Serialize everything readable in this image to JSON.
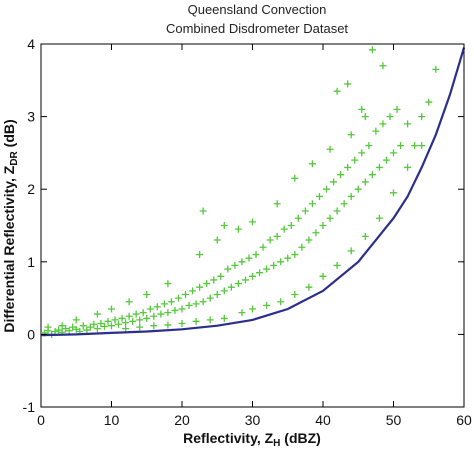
{
  "chart_data": {
    "type": "scatter",
    "title": "Queensland Convection",
    "subtitle": "Combined Disdrometer Dataset",
    "xlabel": "Reflectivity, Z",
    "xlabel_sub": "H",
    "xlabel_unit": " (dBZ)",
    "ylabel": "Differential Reflectivity, Z",
    "ylabel_sub": "DR",
    "ylabel_unit": " (dB)",
    "xlim": [
      0,
      60
    ],
    "ylim": [
      -1,
      4
    ],
    "xticks": [
      0,
      10,
      20,
      30,
      40,
      50,
      60
    ],
    "xtick_labels": [
      "0",
      "10",
      "20",
      "30",
      "40",
      "50",
      "60"
    ],
    "yticks": [
      -1,
      0,
      1,
      2,
      3,
      4
    ],
    "ytick_labels": [
      "-1",
      "0",
      "1",
      "2",
      "3",
      "4"
    ],
    "grid": false,
    "scatter_color": "#55c83c",
    "curve_color": "#2b2e8c",
    "points": [
      [
        0.5,
        0.02
      ],
      [
        1.0,
        0.05
      ],
      [
        1.5,
        0.0
      ],
      [
        2.0,
        0.04
      ],
      [
        2.5,
        0.06
      ],
      [
        3.0,
        0.03
      ],
      [
        3.5,
        0.08
      ],
      [
        4.0,
        0.05
      ],
      [
        4.5,
        0.1
      ],
      [
        5.0,
        0.07
      ],
      [
        5.5,
        0.04
      ],
      [
        6.0,
        0.12
      ],
      [
        6.5,
        0.06
      ],
      [
        7.0,
        0.1
      ],
      [
        7.5,
        0.14
      ],
      [
        8.0,
        0.08
      ],
      [
        8.5,
        0.15
      ],
      [
        9.0,
        0.11
      ],
      [
        9.5,
        0.18
      ],
      [
        10.0,
        0.12
      ],
      [
        10.5,
        0.2
      ],
      [
        11.0,
        0.14
      ],
      [
        11.5,
        0.22
      ],
      [
        12.0,
        0.16
      ],
      [
        12.5,
        0.25
      ],
      [
        13.0,
        0.18
      ],
      [
        13.5,
        0.28
      ],
      [
        14.0,
        0.2
      ],
      [
        14.5,
        0.3
      ],
      [
        15.0,
        0.22
      ],
      [
        15.5,
        0.35
      ],
      [
        16.0,
        0.25
      ],
      [
        16.5,
        0.38
      ],
      [
        17.0,
        0.28
      ],
      [
        17.5,
        0.42
      ],
      [
        18.0,
        0.3
      ],
      [
        18.5,
        0.45
      ],
      [
        19.0,
        0.33
      ],
      [
        19.5,
        0.5
      ],
      [
        20.0,
        0.35
      ],
      [
        20.5,
        0.55
      ],
      [
        21.0,
        0.4
      ],
      [
        21.5,
        0.6
      ],
      [
        22.0,
        0.42
      ],
      [
        22.5,
        0.65
      ],
      [
        23.0,
        0.45
      ],
      [
        23.5,
        0.7
      ],
      [
        24.0,
        0.5
      ],
      [
        24.5,
        0.75
      ],
      [
        25.0,
        0.55
      ],
      [
        25.5,
        0.8
      ],
      [
        26.0,
        0.6
      ],
      [
        26.5,
        0.9
      ],
      [
        27.0,
        0.65
      ],
      [
        27.5,
        0.95
      ],
      [
        28.0,
        0.7
      ],
      [
        28.5,
        1.0
      ],
      [
        29.0,
        0.75
      ],
      [
        29.5,
        1.05
      ],
      [
        30.0,
        0.8
      ],
      [
        30.5,
        1.1
      ],
      [
        31.0,
        0.85
      ],
      [
        31.5,
        1.2
      ],
      [
        32.0,
        0.9
      ],
      [
        32.5,
        1.3
      ],
      [
        33.0,
        0.95
      ],
      [
        33.5,
        1.35
      ],
      [
        34.0,
        1.0
      ],
      [
        34.5,
        1.45
      ],
      [
        35.0,
        1.05
      ],
      [
        35.5,
        1.5
      ],
      [
        36.0,
        1.1
      ],
      [
        36.5,
        1.6
      ],
      [
        37.0,
        1.2
      ],
      [
        37.5,
        1.7
      ],
      [
        38.0,
        1.3
      ],
      [
        38.5,
        1.8
      ],
      [
        39.0,
        1.4
      ],
      [
        39.5,
        1.9
      ],
      [
        40.0,
        1.5
      ],
      [
        40.5,
        2.0
      ],
      [
        41.0,
        1.6
      ],
      [
        41.5,
        2.1
      ],
      [
        42.0,
        1.7
      ],
      [
        42.5,
        2.2
      ],
      [
        43.0,
        1.8
      ],
      [
        43.5,
        2.3
      ],
      [
        44.0,
        1.9
      ],
      [
        44.5,
        2.4
      ],
      [
        45.0,
        2.0
      ],
      [
        45.5,
        2.5
      ],
      [
        46.0,
        2.1
      ],
      [
        46.5,
        2.6
      ],
      [
        47.0,
        2.2
      ],
      [
        47.5,
        2.8
      ],
      [
        48.0,
        2.3
      ],
      [
        48.5,
        2.9
      ],
      [
        49.0,
        2.4
      ],
      [
        49.5,
        3.0
      ],
      [
        50.0,
        2.5
      ],
      [
        50.5,
        3.1
      ],
      [
        51.0,
        2.6
      ],
      [
        52.0,
        2.9
      ],
      [
        53.0,
        2.6
      ],
      [
        54.0,
        3.0
      ],
      [
        55.0,
        3.2
      ],
      [
        56.0,
        3.65
      ],
      [
        47.0,
        3.92
      ],
      [
        45.5,
        3.1
      ],
      [
        43.5,
        3.45
      ],
      [
        42.0,
        3.35
      ],
      [
        48.5,
        3.7
      ],
      [
        23.0,
        1.7
      ],
      [
        26.0,
        1.5
      ],
      [
        22.5,
        1.1
      ],
      [
        25.0,
        1.3
      ],
      [
        28.0,
        1.45
      ],
      [
        30.0,
        1.55
      ],
      [
        33.5,
        1.8
      ],
      [
        36.0,
        2.15
      ],
      [
        38.5,
        2.35
      ],
      [
        41.0,
        2.55
      ],
      [
        44.0,
        2.75
      ],
      [
        46.0,
        3.0
      ],
      [
        18.0,
        0.7
      ],
      [
        15.0,
        0.55
      ],
      [
        12.5,
        0.45
      ],
      [
        10.0,
        0.35
      ],
      [
        8.0,
        0.28
      ],
      [
        5.0,
        0.2
      ],
      [
        3.0,
        0.12
      ],
      [
        1.0,
        0.1
      ],
      [
        28.5,
        0.3
      ],
      [
        30.0,
        0.35
      ],
      [
        32.0,
        0.4
      ],
      [
        34.0,
        0.45
      ],
      [
        36.0,
        0.55
      ],
      [
        38.0,
        0.65
      ],
      [
        40.0,
        0.8
      ],
      [
        42.0,
        0.95
      ],
      [
        44.0,
        1.15
      ],
      [
        46.0,
        1.35
      ],
      [
        48.0,
        1.6
      ],
      [
        50.0,
        1.95
      ],
      [
        52.0,
        2.3
      ],
      [
        54.0,
        2.6
      ],
      [
        20.0,
        0.15
      ],
      [
        22.0,
        0.18
      ],
      [
        24.0,
        0.2
      ],
      [
        26.0,
        0.22
      ],
      [
        16.0,
        0.12
      ],
      [
        14.0,
        0.1
      ],
      [
        12.0,
        0.08
      ],
      [
        18.0,
        0.13
      ]
    ],
    "curve": [
      [
        0,
        -0.01
      ],
      [
        5,
        0.0
      ],
      [
        10,
        0.02
      ],
      [
        15,
        0.04
      ],
      [
        20,
        0.07
      ],
      [
        25,
        0.12
      ],
      [
        30,
        0.2
      ],
      [
        35,
        0.35
      ],
      [
        40,
        0.6
      ],
      [
        45,
        1.0
      ],
      [
        50,
        1.6
      ],
      [
        52,
        1.9
      ],
      [
        54,
        2.3
      ],
      [
        56,
        2.75
      ],
      [
        58,
        3.3
      ],
      [
        60,
        3.95
      ]
    ]
  }
}
